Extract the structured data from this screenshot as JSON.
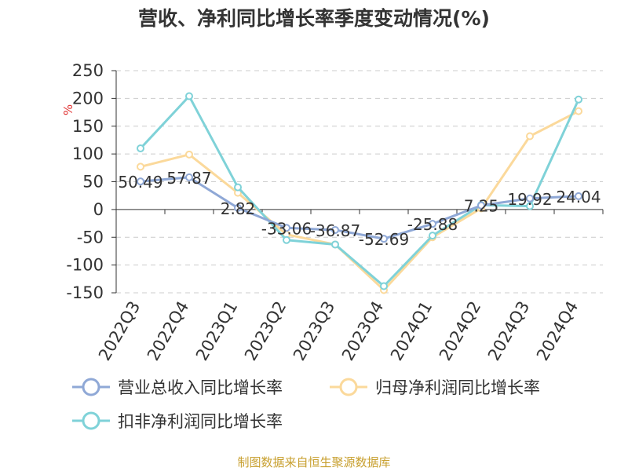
{
  "title": "营收、净利同比增长率季度变动情况(%)",
  "source": "制图数据来自恒生聚源数据库",
  "chart_data": {
    "type": "line",
    "categories": [
      "2022Q3",
      "2022Q4",
      "2023Q1",
      "2023Q2",
      "2023Q3",
      "2023Q4",
      "2024Q1",
      "2024Q2",
      "2024Q3",
      "2024Q4"
    ],
    "ylabel": "%",
    "ylim": [
      -150,
      250
    ],
    "yticks": [
      250,
      200,
      150,
      100,
      50,
      0,
      -50,
      -100,
      -150
    ],
    "grid": true,
    "legend_position": "bottom",
    "series": [
      {
        "name": "营业总收入同比增长率",
        "color": "#8fa8d6",
        "values": [
          50.49,
          57.87,
          2.82,
          -33.06,
          -36.87,
          -52.69,
          -25.88,
          7.25,
          19.92,
          24.04
        ],
        "labels": [
          "50.49",
          "57.87",
          "2.82",
          "-33.06",
          "-36.87",
          "-52.69",
          "-25.88",
          "7.25",
          "19.92",
          "24.04"
        ]
      },
      {
        "name": "归母净利润同比增长率",
        "color": "#fbd99b",
        "values": [
          77,
          99,
          30,
          -45,
          -63,
          -145,
          -50,
          2,
          132,
          177
        ]
      },
      {
        "name": "扣非净利润同比增长率",
        "color": "#7fd2d8",
        "values": [
          110,
          204,
          40,
          -55,
          -63,
          -138,
          -47,
          8,
          6,
          198
        ]
      }
    ]
  }
}
